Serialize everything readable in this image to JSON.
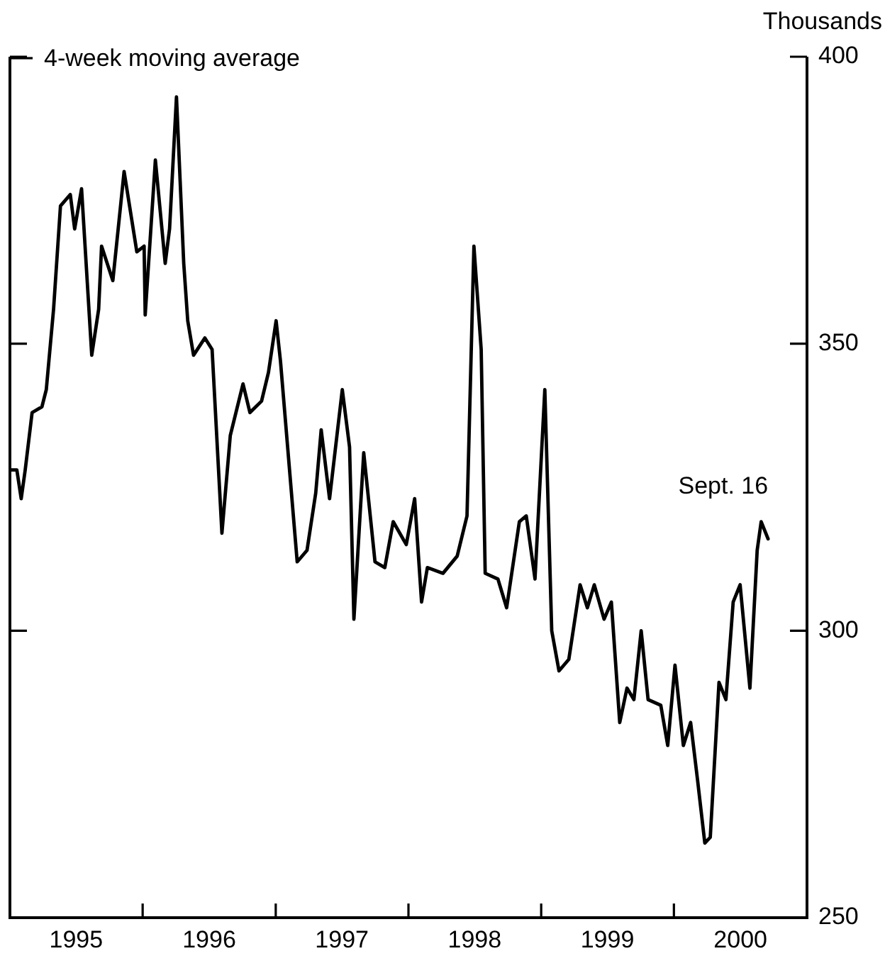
{
  "chart_data": {
    "type": "line",
    "ylabel": "Thousands",
    "x": [
      "1995-01-05",
      "1995-01-20",
      "1995-02-01",
      "1995-02-12",
      "1995-03-03",
      "1995-03-30",
      "1995-04-11",
      "1995-05-01",
      "1995-05-20",
      "1995-06-16",
      "1995-06-28",
      "1995-07-17",
      "1995-08-14",
      "1995-09-02",
      "1995-09-10",
      "1995-10-11",
      "1995-11-11",
      "1995-12-16",
      "1996-01-05",
      "1996-01-08",
      "1996-02-05",
      "1996-03-03",
      "1996-03-15",
      "1996-04-03",
      "1996-04-23",
      "1996-05-04",
      "1996-05-20",
      "1996-06-20",
      "1996-07-10",
      "1996-08-06",
      "1996-08-29",
      "1996-10-03",
      "1996-10-22",
      "1996-11-23",
      "1996-12-12",
      "1997-01-02",
      "1997-01-14",
      "1997-03-01",
      "1997-03-28",
      "1997-04-21",
      "1997-05-06",
      "1997-05-29",
      "1997-07-03",
      "1997-07-23",
      "1997-08-04",
      "1997-08-31",
      "1997-10-01",
      "1997-10-28",
      "1997-11-20",
      "1997-12-26",
      "1998-01-18",
      "1998-02-06",
      "1998-02-22",
      "1998-04-06",
      "1998-05-15",
      "1998-06-11",
      "1998-06-30",
      "1998-07-20",
      "1998-07-31",
      "1998-09-04",
      "1998-09-28",
      "1998-11-02",
      "1998-11-21",
      "1998-12-15",
      "1999-01-11",
      "1999-01-30",
      "1999-02-19",
      "1999-03-18",
      "1999-04-18",
      "1999-05-08",
      "1999-05-27",
      "1999-06-23",
      "1999-07-13",
      "1999-08-05",
      "1999-08-25",
      "1999-09-13",
      "1999-10-03",
      "1999-10-22",
      "1999-11-26",
      "1999-12-15",
      "2000-01-04",
      "2000-01-27",
      "2000-02-16",
      "2000-03-06",
      "2000-03-26",
      "2000-04-10",
      "2000-05-04",
      "2000-05-23",
      "2000-06-12",
      "2000-07-01",
      "2000-07-28",
      "2000-08-17",
      "2000-08-28",
      "2000-09-16"
    ],
    "series": [
      {
        "name": "4-week moving average",
        "color": "#000000",
        "values": [
          328,
          328,
          323,
          328,
          338,
          339,
          342,
          356,
          374,
          376,
          370,
          377,
          348,
          356,
          367,
          361,
          380,
          366,
          367,
          355,
          382,
          364,
          370,
          393,
          364,
          354,
          348,
          351,
          349,
          317,
          334,
          343,
          338,
          340,
          345,
          354,
          347,
          312,
          314,
          324,
          335,
          323,
          342,
          332,
          302,
          331,
          312,
          311,
          319,
          315,
          323,
          305,
          311,
          310,
          313,
          320,
          367,
          349,
          310,
          309,
          304,
          319,
          320,
          309,
          342,
          300,
          293,
          295,
          308,
          304,
          308,
          302,
          305,
          284,
          290,
          288,
          300,
          288,
          287,
          280,
          294,
          280,
          284,
          274,
          263,
          264,
          291,
          288,
          305,
          308,
          290,
          314,
          319,
          316
        ]
      }
    ],
    "annotations": [
      {
        "text": "Sept. 16",
        "x": "2000-09-16",
        "y": 316
      }
    ],
    "xlim": [
      "1995-01-01",
      "2001-01-01"
    ],
    "xticks": [
      {
        "value": "1995-07-02",
        "label": "1995"
      },
      {
        "value": "1996-01-01",
        "label": null
      },
      {
        "value": "1996-07-02",
        "label": "1996"
      },
      {
        "value": "1997-01-01",
        "label": null
      },
      {
        "value": "1997-07-02",
        "label": "1997"
      },
      {
        "value": "1998-01-01",
        "label": null
      },
      {
        "value": "1998-07-02",
        "label": "1998"
      },
      {
        "value": "1999-01-01",
        "label": null
      },
      {
        "value": "1999-07-02",
        "label": "1999"
      },
      {
        "value": "2000-01-01",
        "label": null
      },
      {
        "value": "2000-07-02",
        "label": "2000"
      }
    ],
    "ylim": [
      250,
      400
    ],
    "yticks": [
      250,
      300,
      350,
      400
    ],
    "grid": false,
    "legend": "top left",
    "marker": "none",
    "line_style": "solid"
  }
}
